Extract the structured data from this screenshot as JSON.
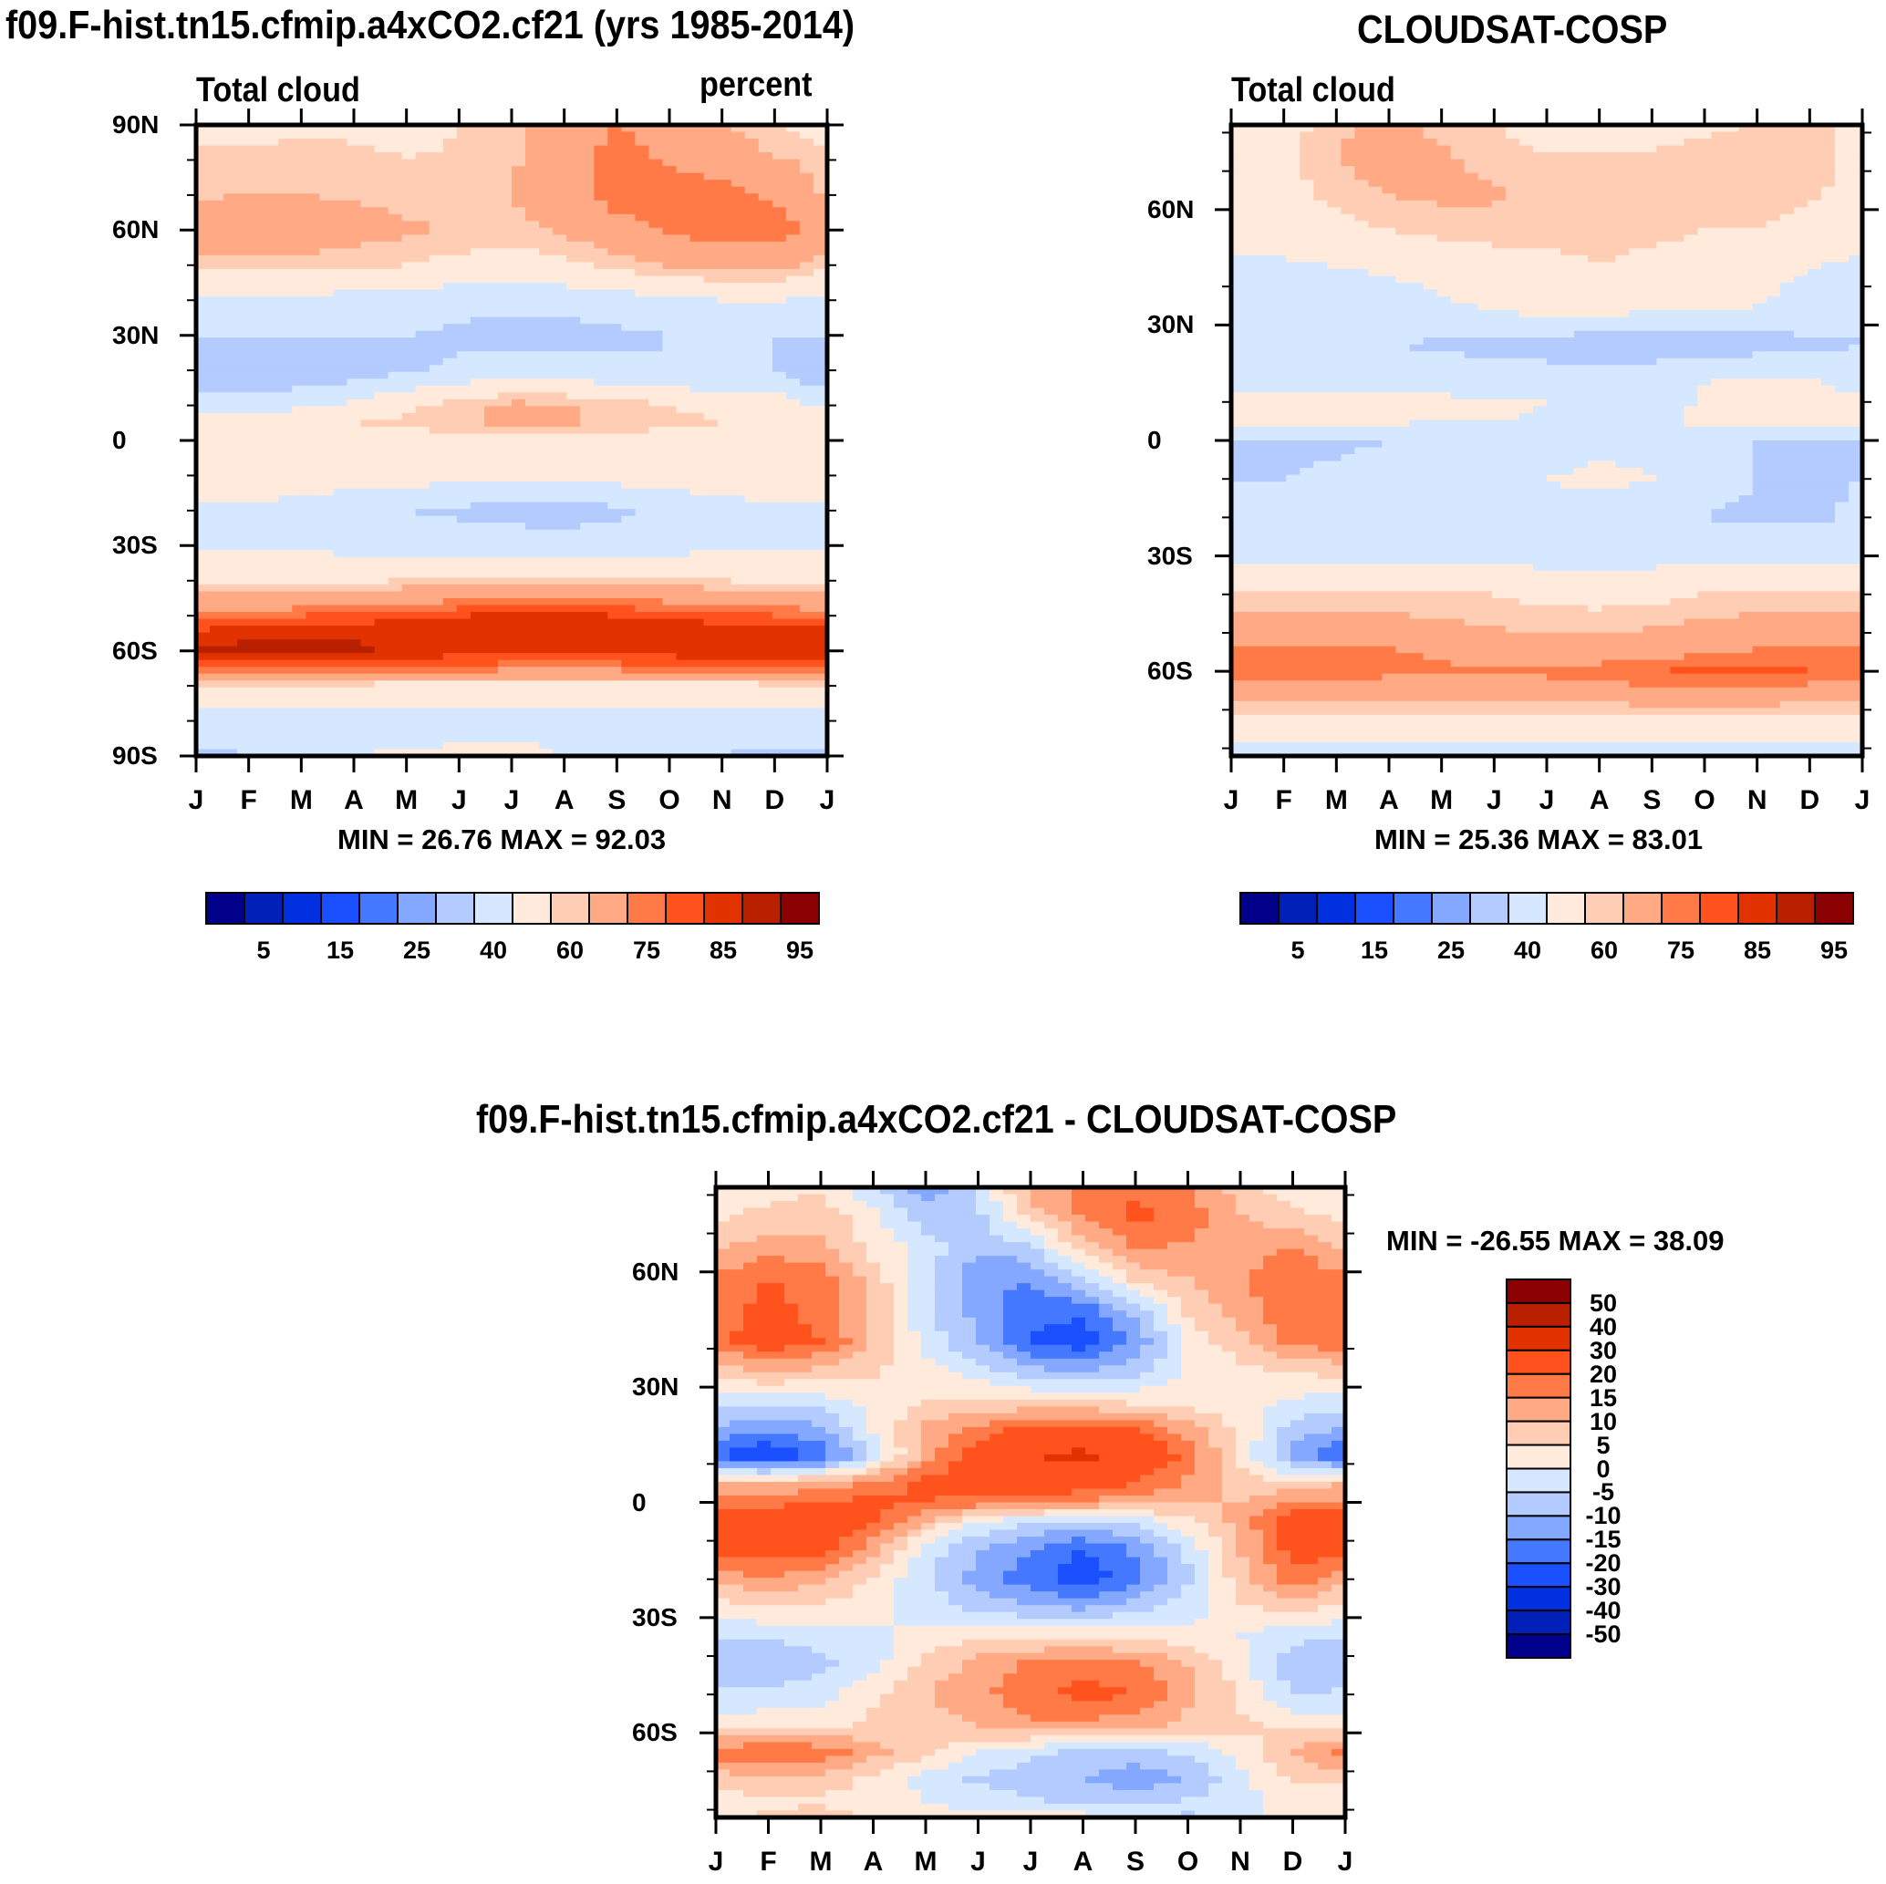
{
  "chart_data": [
    {
      "id": "model",
      "type": "heatmap",
      "title": "f09.F-hist.tn15.cfmip.a4xCO2.cf21 (yrs 1985-2014)",
      "left_label": "Total cloud",
      "right_label": "percent",
      "xlabel": "",
      "ylabel": "",
      "x_ticks": [
        "J",
        "F",
        "M",
        "A",
        "M",
        "J",
        "J",
        "A",
        "S",
        "O",
        "N",
        "D",
        "J"
      ],
      "y_ticks": [
        "90N",
        "60N",
        "30N",
        "0",
        "30S",
        "60S",
        "90S"
      ],
      "ylim": [
        -90,
        90
      ],
      "minmax": "MIN =  26.76 MAX =  92.03",
      "levels": [
        5,
        10,
        15,
        20,
        25,
        30,
        40,
        50,
        60,
        65,
        75,
        80,
        85,
        90,
        95
      ],
      "colorbar_labels": [
        "5",
        "15",
        "25",
        "40",
        "60",
        "75",
        "85",
        "95"
      ],
      "lats": [
        90,
        80,
        70,
        60,
        50,
        40,
        30,
        20,
        10,
        5,
        0,
        -10,
        -20,
        -30,
        -40,
        -50,
        -55,
        -60,
        -65,
        -70,
        -80,
        -90
      ],
      "months": [
        "J",
        "F",
        "M",
        "A",
        "M",
        "J",
        "J",
        "A",
        "S",
        "O",
        "N",
        "D",
        "J"
      ],
      "grid": [
        [
          57,
          57,
          58,
          58,
          57,
          60,
          63,
          70,
          75,
          72,
          66,
          60,
          57
        ],
        [
          62,
          62,
          63,
          62,
          60,
          61,
          64,
          71,
          78,
          74,
          70,
          66,
          62
        ],
        [
          64,
          65,
          65,
          64,
          63,
          63,
          65,
          70,
          78,
          80,
          78,
          74,
          64
        ],
        [
          71,
          72,
          70,
          68,
          66,
          64,
          63,
          66,
          72,
          76,
          80,
          80,
          71
        ],
        [
          62,
          63,
          63,
          61,
          60,
          58,
          56,
          58,
          62,
          66,
          68,
          68,
          62
        ],
        [
          48,
          48,
          48,
          46,
          45,
          44,
          43,
          44,
          46,
          48,
          50,
          50,
          48
        ],
        [
          40,
          40,
          40,
          40,
          40,
          38,
          36,
          36,
          38,
          40,
          40,
          40,
          40
        ],
        [
          31,
          30,
          32,
          35,
          38,
          42,
          44,
          44,
          42,
          40,
          40,
          40,
          31
        ],
        [
          47,
          46,
          48,
          52,
          58,
          63,
          67,
          66,
          63,
          60,
          57,
          55,
          47
        ],
        [
          58,
          56,
          57,
          60,
          62,
          64,
          66,
          66,
          64,
          62,
          60,
          58,
          58
        ],
        [
          60,
          60,
          58,
          57,
          56,
          56,
          56,
          56,
          56,
          56,
          57,
          58,
          60
        ],
        [
          56,
          55,
          55,
          54,
          54,
          54,
          54,
          54,
          54,
          55,
          56,
          58,
          56
        ],
        [
          49,
          48,
          47,
          44,
          40,
          38,
          37,
          36,
          38,
          42,
          46,
          48,
          49
        ],
        [
          48,
          48,
          48,
          47,
          46,
          45,
          44,
          44,
          45,
          46,
          48,
          49,
          48
        ],
        [
          58,
          58,
          58,
          59,
          60,
          61,
          62,
          62,
          62,
          61,
          60,
          59,
          58
        ],
        [
          78,
          78,
          80,
          82,
          84,
          85,
          86,
          86,
          85,
          84,
          82,
          80,
          78
        ],
        [
          87,
          88,
          89,
          89,
          89,
          89,
          88,
          88,
          88,
          89,
          89,
          89,
          87
        ],
        [
          90,
          92,
          92,
          91,
          89,
          88,
          87,
          87,
          87,
          88,
          89,
          89,
          90
        ],
        [
          79,
          80,
          80,
          80,
          79,
          78,
          77,
          77,
          77,
          78,
          79,
          80,
          79
        ],
        [
          58,
          58,
          58,
          58,
          57,
          57,
          57,
          57,
          57,
          57,
          57,
          58,
          58
        ],
        [
          46,
          46,
          46,
          46,
          46,
          46,
          46,
          45,
          44,
          44,
          44,
          45,
          46
        ],
        [
          38,
          40,
          48,
          50,
          51,
          52,
          53,
          50,
          44,
          42,
          40,
          38,
          38
        ]
      ]
    },
    {
      "id": "obs",
      "type": "heatmap",
      "title": "CLOUDSAT-COSP",
      "left_label": "Total cloud",
      "xlabel": "",
      "ylabel": "",
      "x_ticks": [
        "J",
        "F",
        "M",
        "A",
        "M",
        "J",
        "J",
        "A",
        "S",
        "O",
        "N",
        "D",
        "J"
      ],
      "y_ticks": [
        "60N",
        "30N",
        "0",
        "30S",
        "60S"
      ],
      "ylim": [
        -82,
        82
      ],
      "minmax": "MIN =  25.36 MAX =  83.01",
      "levels": [
        5,
        10,
        15,
        20,
        25,
        30,
        40,
        50,
        60,
        65,
        75,
        80,
        85,
        90,
        95
      ],
      "colorbar_labels": [
        "5",
        "15",
        "25",
        "40",
        "60",
        "75",
        "85",
        "95"
      ],
      "lats": [
        82,
        75,
        65,
        55,
        45,
        35,
        25,
        15,
        10,
        5,
        0,
        -10,
        -20,
        -30,
        -40,
        -50,
        -55,
        -60,
        -65,
        -70,
        -75,
        -82
      ],
      "months": [
        "J",
        "F",
        "M",
        "A",
        "M",
        "J",
        "J",
        "A",
        "S",
        "O",
        "N",
        "D",
        "J"
      ],
      "grid": [
        [
          58,
          58,
          62,
          68,
          62,
          60,
          57,
          57,
          58,
          58,
          60,
          62,
          58
        ],
        [
          57,
          58,
          65,
          70,
          66,
          62,
          60,
          60,
          60,
          62,
          64,
          63,
          57
        ],
        [
          56,
          58,
          62,
          66,
          67,
          66,
          62,
          64,
          64,
          64,
          64,
          62,
          56
        ],
        [
          54,
          56,
          58,
          60,
          62,
          63,
          62,
          62,
          62,
          60,
          60,
          56,
          54
        ],
        [
          48,
          48,
          50,
          52,
          54,
          56,
          58,
          60,
          58,
          56,
          54,
          50,
          48
        ],
        [
          42,
          40,
          42,
          44,
          48,
          52,
          54,
          55,
          54,
          52,
          50,
          46,
          42
        ],
        [
          40,
          40,
          40,
          40,
          39,
          38,
          37,
          33,
          33,
          34,
          36,
          38,
          40
        ],
        [
          42,
          45,
          46,
          45,
          44,
          43,
          44,
          46,
          48,
          50,
          52,
          52,
          42
        ],
        [
          56,
          58,
          58,
          55,
          53,
          52,
          50,
          48,
          48,
          50,
          54,
          56,
          56
        ],
        [
          54,
          54,
          53,
          52,
          50,
          50,
          49,
          48,
          48,
          52,
          55,
          56,
          54
        ],
        [
          38,
          38,
          38,
          40,
          44,
          46,
          46,
          48,
          48,
          44,
          40,
          38,
          38
        ],
        [
          40,
          40,
          42,
          44,
          48,
          48,
          50,
          52,
          50,
          44,
          40,
          38,
          40
        ],
        [
          42,
          42,
          42,
          44,
          46,
          48,
          48,
          46,
          44,
          40,
          38,
          38,
          42
        ],
        [
          48,
          48,
          48,
          48,
          48,
          48,
          46,
          44,
          46,
          48,
          48,
          48,
          48
        ],
        [
          60,
          60,
          60,
          60,
          60,
          60,
          58,
          57,
          58,
          60,
          60,
          60,
          60
        ],
        [
          70,
          71,
          71,
          70,
          68,
          66,
          64,
          65,
          66,
          68,
          70,
          70,
          70
        ],
        [
          76,
          77,
          77,
          76,
          74,
          72,
          70,
          70,
          72,
          74,
          76,
          76,
          76
        ],
        [
          78,
          79,
          78,
          77,
          76,
          76,
          77,
          78,
          80,
          82,
          82,
          80,
          78
        ],
        [
          70,
          70,
          70,
          70,
          70,
          70,
          70,
          72,
          74,
          74,
          74,
          72,
          70
        ],
        [
          62,
          62,
          62,
          62,
          62,
          62,
          62,
          62,
          62,
          62,
          62,
          62,
          62
        ],
        [
          54,
          54,
          54,
          54,
          54,
          54,
          54,
          54,
          54,
          54,
          54,
          54,
          54
        ],
        [
          46,
          44,
          43,
          44,
          45,
          45,
          46,
          46,
          46,
          45,
          44,
          44,
          46
        ]
      ]
    },
    {
      "id": "diff",
      "type": "heatmap",
      "title": "f09.F-hist.tn15.cfmip.a4xCO2.cf21 - CLOUDSAT-COSP",
      "xlabel": "",
      "ylabel": "",
      "x_ticks": [
        "J",
        "F",
        "M",
        "A",
        "M",
        "J",
        "J",
        "A",
        "S",
        "O",
        "N",
        "D",
        "J"
      ],
      "y_ticks": [
        "60N",
        "30N",
        "0",
        "30S",
        "60S"
      ],
      "ylim": [
        -82,
        82
      ],
      "minmax": "MIN = -26.55 MAX =  38.09",
      "levels": [
        -50,
        -40,
        -30,
        -20,
        -15,
        -10,
        -5,
        0,
        5,
        10,
        15,
        20,
        30,
        40,
        50
      ],
      "colorbar_labels": [
        "50",
        "40",
        "30",
        "20",
        "15",
        "10",
        "5",
        "0",
        "-5",
        "-10",
        "-15",
        "-20",
        "-30",
        "-40",
        "-50"
      ],
      "lats": [
        82,
        75,
        65,
        58,
        50,
        42,
        35,
        25,
        18,
        12,
        5,
        0,
        -5,
        -12,
        -20,
        -28,
        -35,
        -42,
        -50,
        -58,
        -65,
        -72,
        -78,
        -82
      ],
      "months": [
        "J",
        "F",
        "M",
        "A",
        "M",
        "J",
        "J",
        "A",
        "S",
        "O",
        "N",
        "D",
        "J"
      ],
      "grid": [
        [
          2,
          3,
          4,
          -4,
          -14,
          -4,
          12,
          16,
          18,
          15,
          8,
          1,
          2
        ],
        [
          4,
          6,
          8,
          1,
          -8,
          -6,
          8,
          16,
          22,
          18,
          10,
          6,
          4
        ],
        [
          10,
          14,
          12,
          4,
          -2,
          -10,
          -8,
          6,
          14,
          14,
          12,
          16,
          10
        ],
        [
          16,
          20,
          18,
          8,
          -4,
          -14,
          -15,
          -6,
          6,
          10,
          14,
          20,
          16
        ],
        [
          17,
          22,
          18,
          9,
          -4,
          -12,
          -19,
          -18,
          -8,
          6,
          12,
          20,
          17
        ],
        [
          18,
          24,
          20,
          10,
          -2,
          -10,
          -20,
          -24,
          -14,
          2,
          8,
          18,
          18
        ],
        [
          8,
          12,
          10,
          6,
          2,
          -4,
          -10,
          -12,
          -8,
          0,
          4,
          6,
          8
        ],
        [
          -4,
          -6,
          -4,
          2,
          6,
          8,
          8,
          8,
          6,
          4,
          2,
          -2,
          -4
        ],
        [
          -12,
          -16,
          -12,
          0,
          12,
          18,
          24,
          26,
          22,
          14,
          4,
          -8,
          -12
        ],
        [
          -20,
          -26,
          -20,
          -4,
          12,
          24,
          30,
          32,
          28,
          18,
          4,
          -12,
          -20
        ],
        [
          10,
          10,
          12,
          16,
          22,
          24,
          26,
          24,
          20,
          14,
          8,
          6,
          10
        ],
        [
          16,
          18,
          20,
          22,
          20,
          18,
          16,
          14,
          12,
          10,
          10,
          16,
          16
        ],
        [
          26,
          26,
          26,
          20,
          10,
          0,
          -4,
          -6,
          -4,
          4,
          12,
          24,
          26
        ],
        [
          24,
          24,
          22,
          12,
          -2,
          -10,
          -15,
          -20,
          -14,
          -4,
          10,
          22,
          24
        ],
        [
          12,
          14,
          12,
          4,
          -4,
          -12,
          -18,
          -24,
          -16,
          -6,
          8,
          18,
          12
        ],
        [
          2,
          4,
          3,
          2,
          -2,
          -6,
          -8,
          -10,
          -6,
          -2,
          4,
          6,
          2
        ],
        [
          -4,
          -4,
          -3,
          -2,
          2,
          4,
          4,
          4,
          4,
          2,
          0,
          -4,
          -4
        ],
        [
          -10,
          -10,
          -6,
          -2,
          6,
          12,
          16,
          18,
          16,
          10,
          2,
          -8,
          -10
        ],
        [
          -4,
          -4,
          -2,
          4,
          10,
          14,
          18,
          22,
          20,
          12,
          4,
          -6,
          -4
        ],
        [
          2,
          4,
          4,
          6,
          8,
          10,
          14,
          14,
          12,
          8,
          6,
          4,
          2
        ],
        [
          18,
          20,
          18,
          12,
          6,
          0,
          -4,
          -6,
          -6,
          -4,
          2,
          10,
          18
        ],
        [
          6,
          10,
          8,
          4,
          -2,
          -6,
          -8,
          -10,
          -14,
          -10,
          -2,
          6,
          6
        ],
        [
          3,
          4,
          4,
          2,
          0,
          -2,
          -4,
          -6,
          -6,
          -4,
          -2,
          2,
          3
        ],
        [
          4,
          6,
          8,
          4,
          2,
          2,
          2,
          2,
          -2,
          -6,
          -2,
          4,
          4
        ]
      ]
    }
  ],
  "palette": [
    "#00008b",
    "#0020b8",
    "#0030e0",
    "#1a50ff",
    "#4478ff",
    "#84a8ff",
    "#b3cbff",
    "#d6e8ff",
    "#ffeadb",
    "#ffcdb4",
    "#ffaa84",
    "#ff7a46",
    "#ff521c",
    "#e23200",
    "#b82000",
    "#8b0000"
  ]
}
